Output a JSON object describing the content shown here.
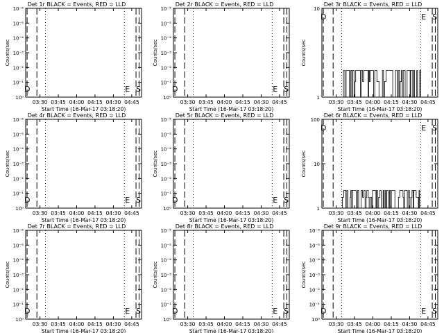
{
  "chart_data": [
    {
      "type": "line",
      "title": "Det 1r BLACK = Events, RED = LLD",
      "xlabel": "Start Time (16-Mar-17 03:18:20)",
      "ylabel": "Counts/sec",
      "yscale": "log",
      "ylim": [
        1.0,
        1e-06
      ],
      "y_ticks": [
        "10⁻⁶",
        "10⁻⁵",
        "10⁻⁴",
        "10⁻³",
        "10⁻²",
        "10⁻¹",
        "10⁰"
      ],
      "x_ticks": [
        "03:30",
        "03:45",
        "04:00",
        "04:15",
        "04:30",
        "04:45"
      ],
      "markers": [
        "D",
        "E",
        "S"
      ],
      "series": []
    },
    {
      "type": "line",
      "title": "Det 2r BLACK = Events, RED = LLD",
      "xlabel": "Start Time (16-Mar-17 03:18:20)",
      "ylabel": "Counts/sec",
      "yscale": "log",
      "ylim": [
        1.0,
        1e-06
      ],
      "y_ticks": [
        "10⁻⁶",
        "10⁻⁵",
        "10⁻⁴",
        "10⁻³",
        "10⁻²",
        "10⁻¹",
        "10⁰"
      ],
      "x_ticks": [
        "03:30",
        "03:45",
        "04:00",
        "04:15",
        "04:30",
        "04:45"
      ],
      "markers": [
        "D",
        "E",
        "S"
      ],
      "series": []
    },
    {
      "type": "line",
      "title": "Det 3r BLACK = Events, RED = LLD",
      "xlabel": "Start Time (16-Mar-17 03:18:20)",
      "ylabel": "Counts/sec",
      "yscale": "log",
      "ylim": [
        1,
        10
      ],
      "y_ticks": [
        "1",
        "10"
      ],
      "x_ticks": [
        "03:30",
        "03:45",
        "04:00",
        "04:15",
        "04:30",
        "04:45"
      ],
      "markers": [
        "D",
        "E",
        "S"
      ],
      "series": [
        {
          "color": "#000000",
          "band": [
            1,
            2
          ],
          "x_start": "03:34",
          "x_end": "04:39"
        }
      ]
    },
    {
      "type": "line",
      "title": "Det 4r BLACK = Events, RED = LLD",
      "xlabel": "Start Time (16-Mar-17 03:18:20)",
      "ylabel": "Counts/sec",
      "yscale": "log",
      "ylim": [
        1.0,
        1e-06
      ],
      "y_ticks": [
        "10⁻⁶",
        "10⁻⁵",
        "10⁻⁴",
        "10⁻³",
        "10⁻²",
        "10⁻¹",
        "10⁰"
      ],
      "x_ticks": [
        "03:30",
        "03:45",
        "04:00",
        "04:15",
        "04:30",
        "04:45"
      ],
      "markers": [
        "D",
        "E",
        "S"
      ],
      "series": []
    },
    {
      "type": "line",
      "title": "Det 5r BLACK = Events, RED = LLD",
      "xlabel": "Start Time (16-Mar-17 03:18:20)",
      "ylabel": "Counts/sec",
      "yscale": "log",
      "ylim": [
        1.0,
        1e-06
      ],
      "y_ticks": [
        "10⁻⁶",
        "10⁻⁵",
        "10⁻⁴",
        "10⁻³",
        "10⁻²",
        "10⁻¹",
        "10⁰"
      ],
      "x_ticks": [
        "03:30",
        "03:45",
        "04:00",
        "04:15",
        "04:30",
        "04:45"
      ],
      "markers": [
        "D",
        "E",
        "S"
      ],
      "series": []
    },
    {
      "type": "line",
      "title": "Det 6r BLACK = Events, RED = LLD",
      "xlabel": "Start Time (16-Mar-17 03:18:20)",
      "ylabel": "Counts/sec",
      "yscale": "log",
      "ylim": [
        1,
        100
      ],
      "y_ticks": [
        "1",
        "10",
        "100"
      ],
      "x_ticks": [
        "03:30",
        "03:45",
        "04:00",
        "04:15",
        "04:30",
        "04:45"
      ],
      "markers": [
        "D",
        "E",
        "S"
      ],
      "series": [
        {
          "color": "#000000",
          "band": [
            1,
            2.5
          ],
          "x_start": "03:34",
          "x_end": "04:39"
        }
      ]
    },
    {
      "type": "line",
      "title": "Det 7r BLACK = Events, RED = LLD",
      "xlabel": "Start Time (16-Mar-17 03:18:20)",
      "ylabel": "Counts/sec",
      "yscale": "log",
      "ylim": [
        1.0,
        1e-06
      ],
      "y_ticks": [
        "10⁻⁶",
        "10⁻⁵",
        "10⁻⁴",
        "10⁻³",
        "10⁻²",
        "10⁻¹",
        "10⁰"
      ],
      "x_ticks": [
        "03:30",
        "03:45",
        "04:00",
        "04:15",
        "04:30",
        "04:45"
      ],
      "markers": [
        "D",
        "E",
        "S"
      ],
      "series": []
    },
    {
      "type": "line",
      "title": "Det 8r BLACK = Events, RED = LLD",
      "xlabel": "Start Time (16-Mar-17 03:18:20)",
      "ylabel": "Counts/sec",
      "yscale": "log",
      "ylim": [
        1.0,
        1e-06
      ],
      "y_ticks": [
        "10⁻⁶",
        "10⁻⁵",
        "10⁻⁴",
        "10⁻³",
        "10⁻²",
        "10⁻¹",
        "10⁰"
      ],
      "x_ticks": [
        "03:30",
        "03:45",
        "04:00",
        "04:15",
        "04:30",
        "04:45"
      ],
      "markers": [
        "D",
        "E",
        "S"
      ],
      "series": []
    },
    {
      "type": "line",
      "title": "Det 9r BLACK = Events, RED = LLD",
      "xlabel": "Start Time (16-Mar-17 03:18:20)",
      "ylabel": "Counts/sec",
      "yscale": "log",
      "ylim": [
        1.0,
        1e-06
      ],
      "y_ticks": [
        "10⁻⁶",
        "10⁻⁵",
        "10⁻⁴",
        "10⁻³",
        "10⁻²",
        "10⁻¹",
        "10⁰"
      ],
      "x_ticks": [
        "03:30",
        "03:45",
        "04:00",
        "04:15",
        "04:30",
        "04:45"
      ],
      "markers": [
        "D",
        "E",
        "S"
      ],
      "series": []
    }
  ]
}
